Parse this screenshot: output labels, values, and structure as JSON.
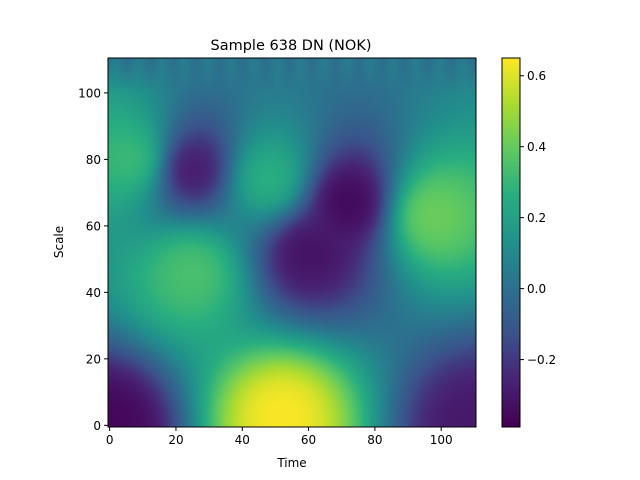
{
  "chart_data": {
    "type": "heatmap",
    "title": "Sample 638 DN (NOK)",
    "xlabel": "Time",
    "ylabel": "Scale",
    "xlim": [
      -0.5,
      110.5
    ],
    "ylim": [
      110.5,
      -0.5
    ],
    "x_ticks": [
      0,
      20,
      40,
      60,
      80,
      100
    ],
    "y_ticks": [
      0,
      20,
      40,
      60,
      80,
      100
    ],
    "colormap": "viridis",
    "colorbar": {
      "range": [
        -0.39,
        0.65
      ],
      "ticks": [
        0.6,
        0.4,
        0.2,
        0.0,
        -0.2
      ],
      "tick_labels": [
        "0.6",
        "0.4",
        "0.2",
        "0.0",
        "−0.2"
      ]
    },
    "grid": false,
    "legend": "none",
    "features": [
      {
        "x": 7,
        "y": 30,
        "value": 0.32,
        "kind": "max"
      },
      {
        "x": 25,
        "y": 33,
        "value": -0.3,
        "kind": "min"
      },
      {
        "x": 48,
        "y": 36,
        "value": 0.28,
        "kind": "max"
      },
      {
        "x": 72,
        "y": 43,
        "value": -0.37,
        "kind": "min"
      },
      {
        "x": 60,
        "y": 58,
        "value": -0.33,
        "kind": "min"
      },
      {
        "x": 97,
        "y": 47,
        "value": 0.42,
        "kind": "max"
      },
      {
        "x": 25,
        "y": 64,
        "value": 0.35,
        "kind": "max"
      },
      {
        "x": 52,
        "y": 107,
        "value": 0.65,
        "kind": "max"
      },
      {
        "x": 0,
        "y": 110,
        "value": -0.37,
        "kind": "min"
      },
      {
        "x": 110,
        "y": 110,
        "value": -0.3,
        "kind": "min"
      }
    ]
  }
}
